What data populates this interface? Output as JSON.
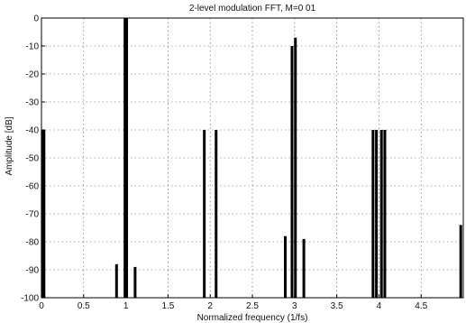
{
  "chart_data": {
    "type": "bar",
    "title": "2-level modulation FFT, M=0 01",
    "xlabel": "Normalized frequency (1/fs)",
    "ylabel": "Amplitude [dB]",
    "xlim": [
      0,
      5
    ],
    "ylim": [
      -100,
      0
    ],
    "xticks": [
      0,
      0.5,
      1,
      1.5,
      2,
      2.5,
      3,
      3.5,
      4,
      4.5
    ],
    "xtick_labels": [
      "0",
      "0.5",
      "1",
      "1.5",
      "2",
      "2.5",
      "3",
      "3.5",
      "4",
      "4.5"
    ],
    "yticks": [
      0,
      -10,
      -20,
      -30,
      -40,
      -50,
      -60,
      -70,
      -80,
      -90,
      -100
    ],
    "ytick_labels": [
      "0",
      "-10",
      "-20",
      "-30",
      "-40",
      "-50",
      "-60",
      "-70",
      "-80",
      "-90",
      "-100"
    ],
    "grid": true,
    "baseline": -100,
    "bar_color": "#000000",
    "x": [
      0.01,
      0.03,
      0.89,
      0.99,
      1.01,
      1.11,
      1.93,
      2.07,
      2.89,
      2.97,
      3.01,
      3.11,
      3.93,
      3.97,
      4.03,
      4.07,
      4.97
    ],
    "values": [
      -40,
      -40,
      -88,
      0,
      0,
      -89,
      -40,
      -40,
      -78,
      -10,
      -7,
      -79,
      -40,
      -40,
      -40,
      -40,
      -74
    ]
  }
}
